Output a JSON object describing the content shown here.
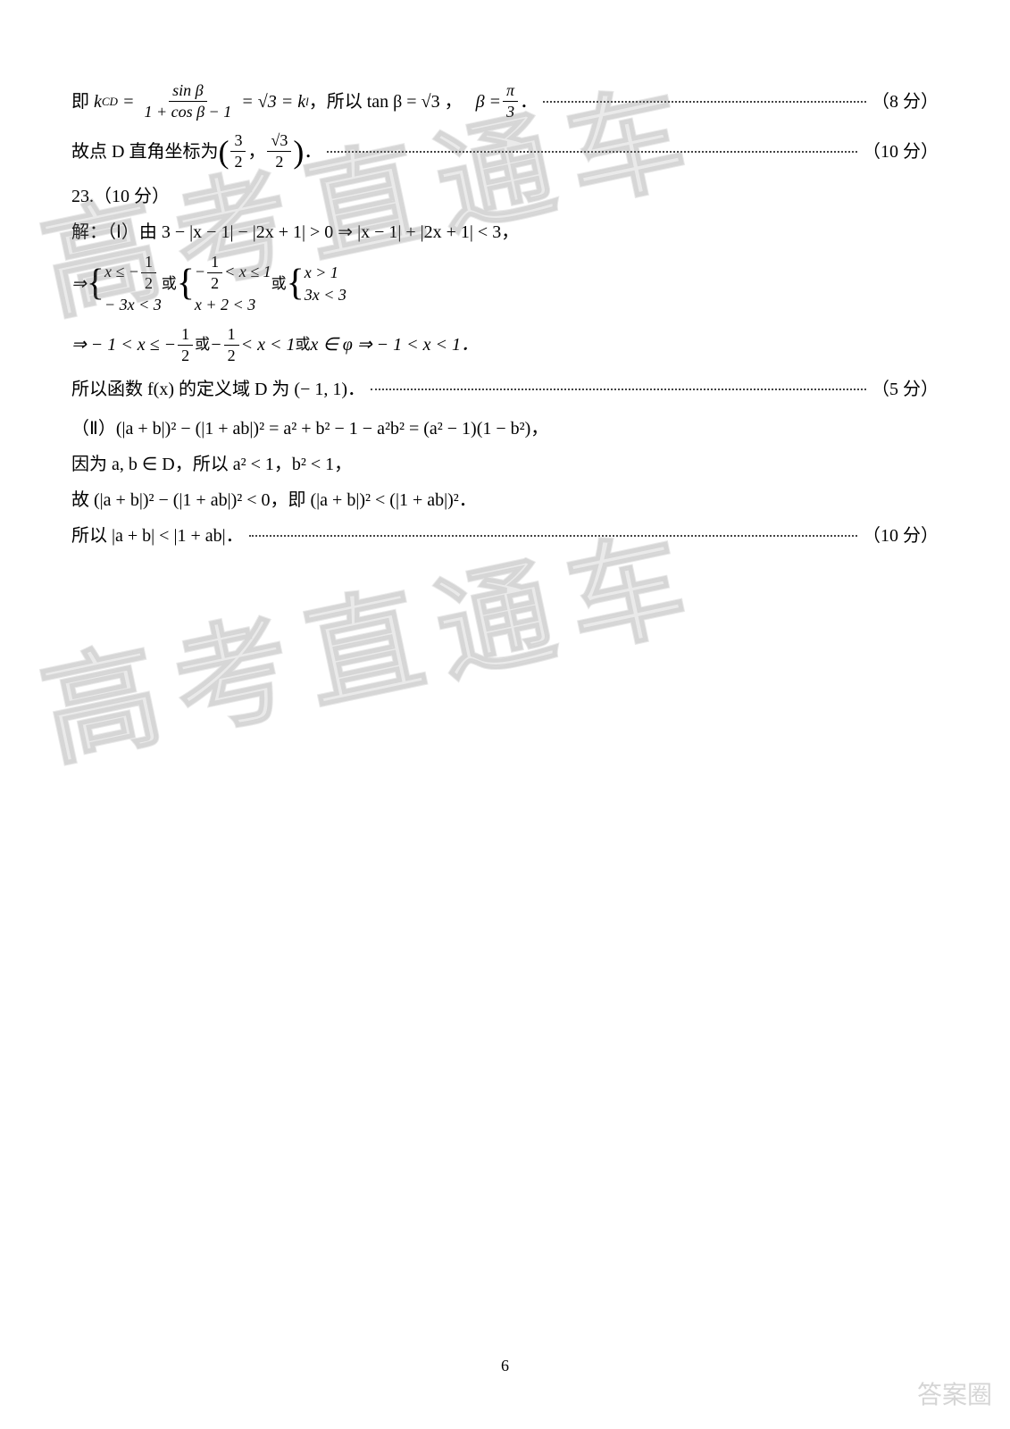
{
  "watermark": "高考直通车",
  "line1": {
    "prefix": "即",
    "k_sub": "CD",
    "frac_num": "sin β",
    "frac_den": "1 + cos β − 1",
    "eq1": "= √3 = ",
    "k2_sub": "l",
    "mid": "，所以 tan β = √3 ，",
    "beta": "β = ",
    "pi_num": "π",
    "pi_den": "3",
    "score": "（8 分）"
  },
  "line2": {
    "prefix": "故点 D 直角坐标为",
    "p_num1": "3",
    "p_den1": "2",
    "comma": "，",
    "p_num2": "√3",
    "p_den2": "2",
    "suffix": "．",
    "score": "（10 分）"
  },
  "line3": "23.（10 分）",
  "line4": "解：（Ⅰ）由 3 − |x − 1| − |2x + 1| > 0  ⇒ |x − 1| + |2x + 1| < 3，",
  "line5": {
    "arrow": "⇒",
    "c1a_num": "1",
    "c1a_den": "2",
    "c1a": "x ≤ −",
    "c1b": "− 3x < 3",
    "or1": "或",
    "c2a_pre": "−",
    "c2a_num": "1",
    "c2a_den": "2",
    "c2a_post": "< x ≤ 1",
    "c2b": "x + 2 < 3",
    "or2": "或",
    "c3a": "x > 1",
    "c3b": "3x < 3"
  },
  "line6": {
    "arrow": "⇒ − 1 < x ≤ −",
    "f1n": "1",
    "f1d": "2",
    "or1": "或",
    "mid": "−",
    "f2n": "1",
    "f2d": "2",
    "mid2": "< x < 1",
    "or2": "或",
    "tail": "x ∈ φ  ⇒ − 1 < x < 1．"
  },
  "line7": {
    "text": "所以函数 f(x) 的定义域 D 为 (− 1, 1)．",
    "score": "（5 分）"
  },
  "line8": "（Ⅱ）(|a + b|)² − (|1 + ab|)² = a² + b² − 1 − a²b² = (a² − 1)(1 − b²)，",
  "line9": "因为 a, b ∈ D，所以 a² < 1，b² < 1，",
  "line10": "故 (|a + b|)² − (|1 + ab|)² < 0，即 (|a + b|)² < (|1 + ab|)²．",
  "line11": {
    "text": "所以 |a + b| < |1 + ab|．",
    "score": "（10 分）"
  },
  "page_number": "6",
  "corner": "答案圈"
}
